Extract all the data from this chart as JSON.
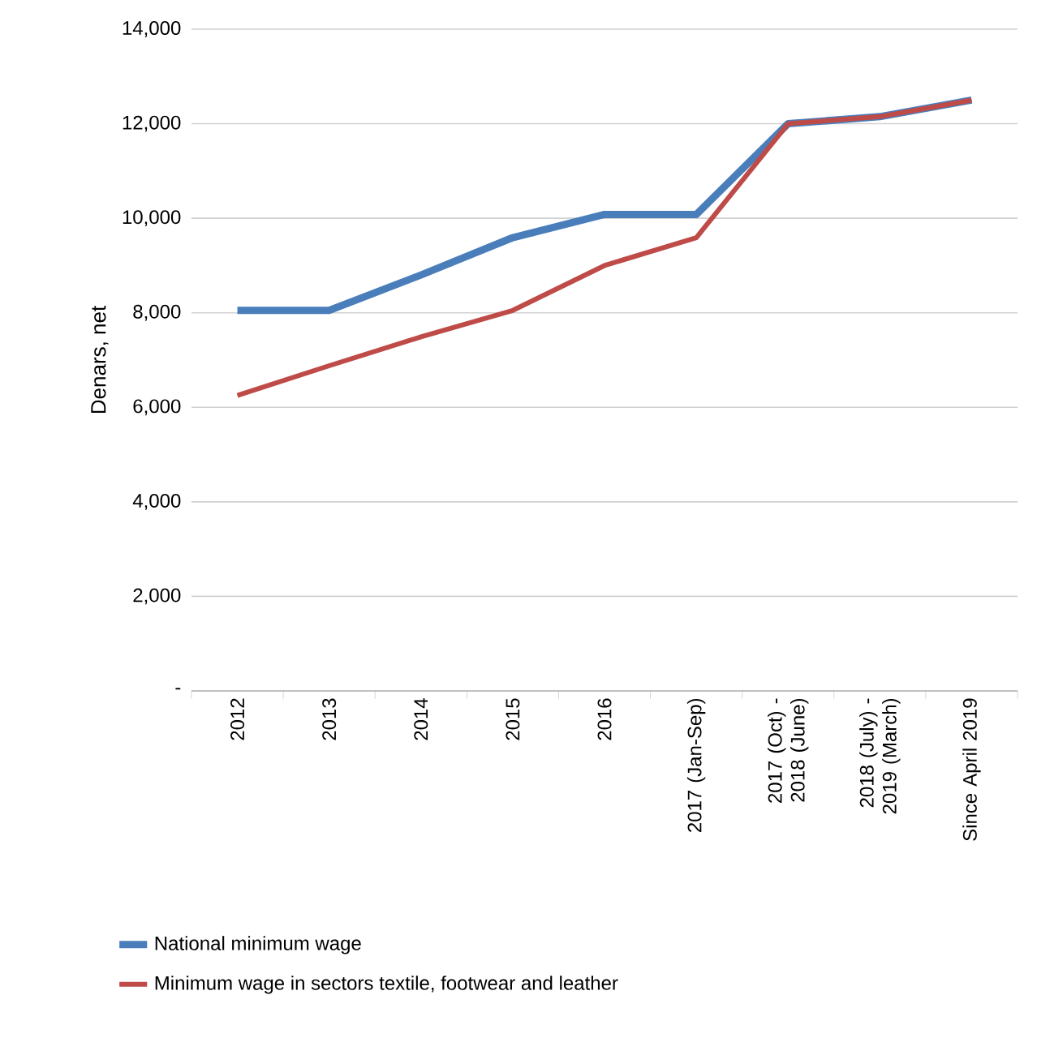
{
  "chart_data": {
    "type": "line",
    "ylabel": "Denars, net",
    "categories": [
      "2012",
      "2013",
      "2014",
      "2015",
      "2016",
      "2017 (Jan-Sep)",
      "2017 (Oct) - 2018 (June)",
      "2018 (July) - 2019 (March)",
      "Since April 2019"
    ],
    "series": [
      {
        "name": "National minimum wage",
        "color": "#4a7ebb",
        "values": [
          8050,
          8050,
          8800,
          9590,
          10080,
          10080,
          12000,
          12150,
          12500
        ]
      },
      {
        "name": "Minimum wage in sectors textile, footwear and leather",
        "color": "#be4b48",
        "values": [
          6250,
          6880,
          7490,
          8050,
          9000,
          9590,
          12000,
          12150,
          12500
        ]
      }
    ],
    "ylim": [
      0,
      14000
    ],
    "yticks": [
      {
        "value": 0,
        "label": "-"
      },
      {
        "value": 2000,
        "label": "2,000"
      },
      {
        "value": 4000,
        "label": "4,000"
      },
      {
        "value": 6000,
        "label": "6,000"
      },
      {
        "value": 8000,
        "label": "8,000"
      },
      {
        "value": 10000,
        "label": "10,000"
      },
      {
        "value": 12000,
        "label": "12,000"
      },
      {
        "value": 14000,
        "label": "14,000"
      }
    ],
    "grid": "y",
    "legend": "bottom",
    "marker": "none",
    "line_style": "solid"
  }
}
